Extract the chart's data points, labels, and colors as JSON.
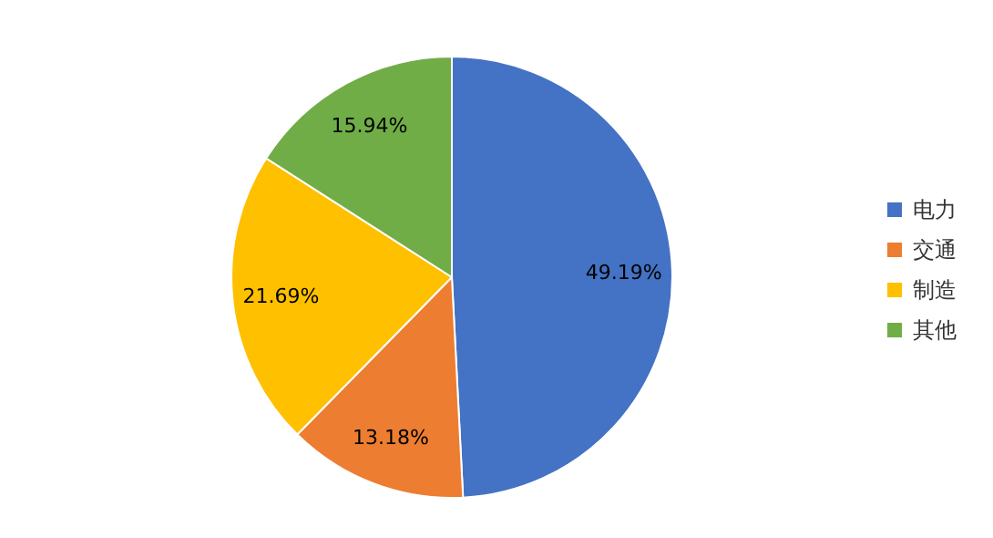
{
  "chart_data": {
    "type": "pie",
    "categories": [
      "电力",
      "交通",
      "制造",
      "其他"
    ],
    "values": [
      49.19,
      13.18,
      21.69,
      15.94
    ],
    "colors": [
      "#4472c4",
      "#ed7d31",
      "#ffc000",
      "#70ad47"
    ],
    "value_labels": [
      "49.19%",
      "13.18%",
      "21.69%",
      "15.94%"
    ],
    "legend": "right"
  }
}
